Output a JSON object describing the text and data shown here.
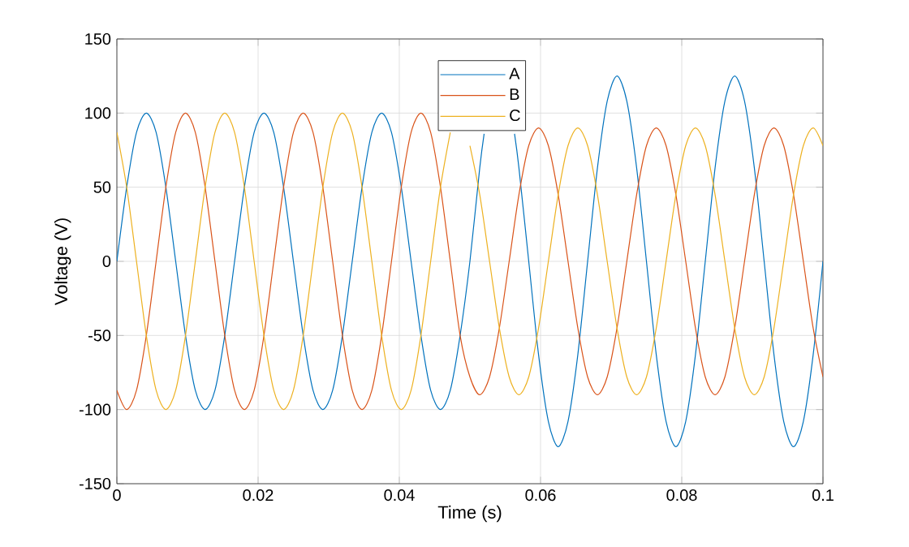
{
  "chart_data": {
    "type": "line",
    "xlabel": "Time (s)",
    "ylabel": "Voltage (V)",
    "x": [
      0,
      0.00139,
      0.00278,
      0.00417,
      0.00556,
      0.00694,
      0.00833,
      0.00972,
      0.01111,
      0.0125,
      0.01389,
      0.01528,
      0.01667,
      0.01806,
      0.01944,
      0.02083,
      0.02222,
      0.02361,
      0.025,
      0.02639,
      0.02778,
      0.02917,
      0.03056,
      0.03194,
      0.03333,
      0.03472,
      0.03611,
      0.0375,
      0.03889,
      0.04028,
      0.04167,
      0.04306,
      0.04444,
      0.04583,
      0.04722,
      0.04861,
      0.05,
      0.05139,
      0.05278,
      0.05417,
      0.05556,
      0.05694,
      0.05833,
      0.05972,
      0.06111,
      0.0625,
      0.06389,
      0.06528,
      0.06667,
      0.06806,
      0.06944,
      0.07083,
      0.07222,
      0.07361,
      0.075,
      0.07639,
      0.07778,
      0.07917,
      0.08056,
      0.08194,
      0.08333,
      0.08472,
      0.08611,
      0.0875,
      0.08889,
      0.09028,
      0.09167,
      0.09306,
      0.09444,
      0.09583,
      0.09722,
      0.09861,
      0.1
    ],
    "series": [
      {
        "name": "A",
        "color": "#0072bd",
        "x": [
          0,
          0.00139,
          0.00278,
          0.00417,
          0.00556,
          0.00694,
          0.00833,
          0.00972,
          0.01111,
          0.0125,
          0.01389,
          0.01528,
          0.01667,
          0.01806,
          0.01944,
          0.02083,
          0.02222,
          0.02361,
          0.025,
          0.02639,
          0.02778,
          0.02917,
          0.03056,
          0.03194,
          0.03333,
          0.03472,
          0.03611,
          0.0375,
          0.03889,
          0.04028,
          0.04167,
          0.04306,
          0.04444,
          0.04583,
          0.04722,
          0.04861,
          0.05,
          0.05139,
          0.05201,
          0.05417,
          0.05632,
          0.05694,
          0.05833,
          0.05972,
          0.06111,
          0.0625,
          0.06389,
          0.06528,
          0.06667,
          0.06806,
          0.06944,
          0.07083,
          0.07222,
          0.07361,
          0.075,
          0.07639,
          0.07778,
          0.07917,
          0.08056,
          0.08194,
          0.08333,
          0.08472,
          0.08611,
          0.0875,
          0.08889,
          0.09028,
          0.09167,
          0.09306,
          0.09444,
          0.09583,
          0.09722,
          0.09861,
          0.1
        ],
        "values": [
          0,
          50,
          87,
          100,
          87,
          50,
          0,
          -50,
          -87,
          -100,
          -87,
          -50,
          0,
          50,
          87,
          100,
          87,
          50,
          0,
          -50,
          -87,
          -100,
          -87,
          -50,
          0,
          50,
          87,
          100,
          87,
          50,
          0,
          -50,
          -87,
          -100,
          -87,
          -50,
          0,
          63,
          86,
          null,
          86,
          63,
          0,
          -63,
          -108,
          -125,
          -108,
          -63,
          0,
          63,
          108,
          125,
          108,
          63,
          0,
          -63,
          -108,
          -125,
          -108,
          -63,
          0,
          63,
          108,
          125,
          108,
          63,
          0,
          -63,
          -108,
          -125,
          -108,
          -63,
          0
        ]
      },
      {
        "name": "B",
        "color": "#d95319",
        "values": [
          -87,
          -100,
          -87,
          -50,
          0,
          50,
          87,
          100,
          87,
          50,
          0,
          -50,
          -87,
          -100,
          -87,
          -50,
          0,
          50,
          87,
          100,
          87,
          50,
          0,
          -50,
          -87,
          -100,
          -87,
          -50,
          0,
          50,
          87,
          100,
          87,
          50,
          0,
          -50,
          -78,
          -90,
          -78,
          -45,
          0,
          45,
          78,
          90,
          78,
          45,
          0,
          -45,
          -78,
          -90,
          -78,
          -45,
          0,
          45,
          78,
          90,
          78,
          45,
          0,
          -45,
          -78,
          -90,
          -78,
          -45,
          0,
          45,
          78,
          90,
          78,
          45,
          0,
          -45,
          -78
        ]
      },
      {
        "name": "C",
        "color": "#edb120",
        "values": [
          87,
          50,
          0,
          -50,
          -87,
          -100,
          -87,
          -50,
          0,
          50,
          87,
          100,
          87,
          50,
          0,
          -50,
          -87,
          -100,
          -87,
          -50,
          0,
          50,
          87,
          100,
          87,
          50,
          0,
          -50,
          -87,
          -100,
          -87,
          -50,
          0,
          50,
          87,
          null,
          78,
          45,
          0,
          -45,
          -78,
          -90,
          -78,
          -45,
          0,
          45,
          78,
          90,
          78,
          45,
          0,
          -45,
          -78,
          -90,
          -78,
          -45,
          0,
          45,
          78,
          90,
          78,
          45,
          0,
          -45,
          -78,
          -90,
          -78,
          -45,
          0,
          45,
          78,
          90,
          78
        ]
      }
    ],
    "xlim": [
      0,
      0.1
    ],
    "ylim": [
      -150,
      150
    ],
    "xticks": [
      0,
      0.02,
      0.04,
      0.06,
      0.08,
      0.1
    ],
    "yticks": [
      -150,
      -100,
      -50,
      0,
      50,
      100,
      150
    ],
    "grid": true,
    "legend": "top"
  }
}
